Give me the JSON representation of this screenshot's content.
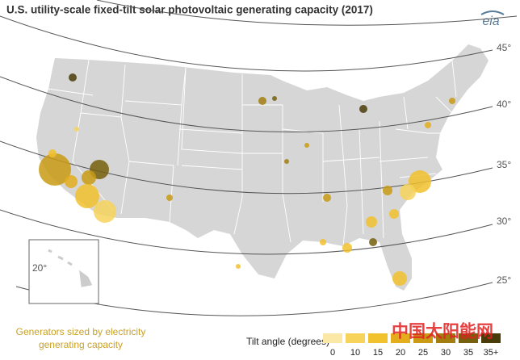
{
  "title": "U.S. utility-scale fixed-tilt solar photovoltaic generating capacity (2017)",
  "logo": "eia",
  "latitude_labels": [
    "45°",
    "40°",
    "35°",
    "30°",
    "25°"
  ],
  "hawaii_label": "20°",
  "size_legend": [
    "Generators sized by electricity",
    "generating capacity"
  ],
  "tilt_legend": {
    "title": "Tilt angle (degrees)",
    "ticks": [
      "0",
      "10",
      "15",
      "20",
      "25",
      "30",
      "35",
      "35+"
    ],
    "colors": [
      "#fbe8a6",
      "#f7d35c",
      "#f2c12e",
      "#e3ad1c",
      "#c99a14",
      "#a27e10",
      "#76600d",
      "#4a3c08"
    ]
  },
  "watermark": "中国太阳能网"
}
